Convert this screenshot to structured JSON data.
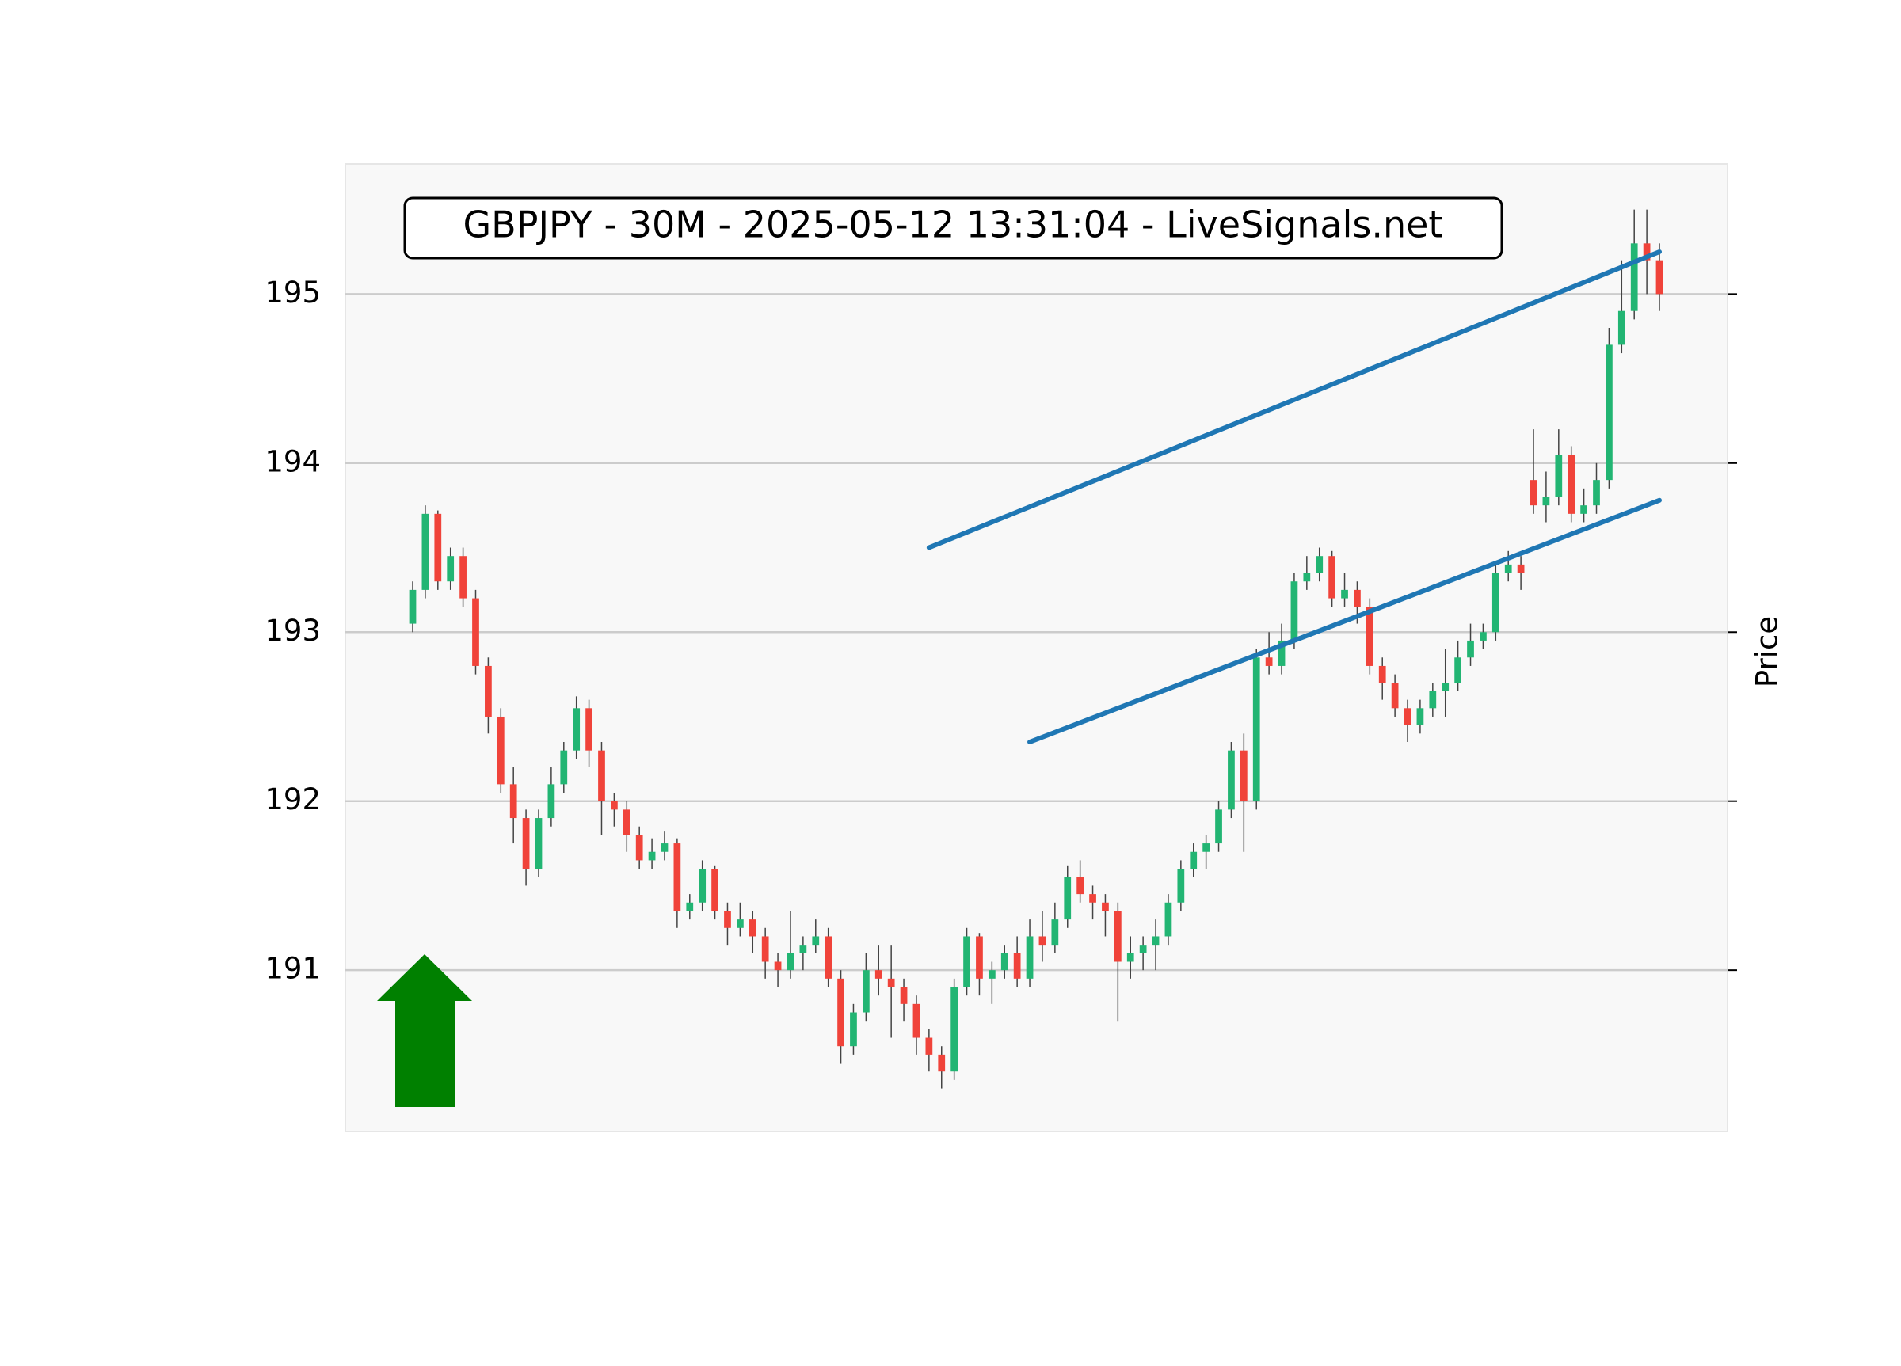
{
  "chart_data": {
    "type": "candlestick",
    "title": "GBPJPY - 30M - 2025-05-12 13:31:04 - LiveSignals.net",
    "y_label": "Price",
    "ylim": [
      190.045,
      195.77
    ],
    "yticks": [
      191,
      192,
      193,
      194,
      195
    ],
    "grid": true,
    "up_color": "#22b573",
    "down_color": "#f0433a",
    "wick_color": "#444444",
    "open": [
      193.05,
      193.25,
      193.7,
      193.3,
      193.45,
      193.2,
      192.8,
      192.5,
      192.1,
      191.9,
      191.6,
      191.9,
      192.1,
      192.3,
      192.55,
      192.3,
      192.0,
      191.95,
      191.8,
      191.65,
      191.7,
      191.75,
      191.35,
      191.4,
      191.6,
      191.35,
      191.25,
      191.3,
      191.2,
      191.05,
      191.0,
      191.1,
      191.15,
      191.2,
      190.95,
      190.55,
      190.75,
      191.0,
      190.95,
      190.9,
      190.8,
      190.6,
      190.5,
      190.4,
      190.9,
      191.2,
      190.95,
      191.0,
      191.1,
      190.95,
      191.2,
      191.15,
      191.3,
      191.55,
      191.45,
      191.4,
      191.35,
      191.05,
      191.1,
      191.15,
      191.2,
      191.4,
      191.6,
      191.7,
      191.75,
      191.95,
      192.3,
      192.0,
      192.85,
      192.8,
      192.95,
      193.3,
      193.35,
      193.45,
      193.2,
      193.25,
      193.15,
      192.8,
      192.7,
      192.55,
      192.45,
      192.55,
      192.65,
      192.7,
      192.85,
      192.95,
      193.0,
      193.35,
      193.4,
      193.9,
      193.75,
      193.8,
      194.05,
      193.7,
      193.75,
      193.9,
      194.7,
      194.9,
      195.3,
      195.2
    ],
    "high": [
      193.3,
      193.75,
      193.72,
      193.5,
      193.5,
      193.25,
      192.85,
      192.55,
      192.2,
      191.95,
      191.95,
      192.2,
      192.35,
      192.62,
      192.6,
      192.35,
      192.05,
      192.0,
      191.85,
      191.78,
      191.82,
      191.78,
      191.45,
      191.65,
      191.62,
      191.4,
      191.4,
      191.35,
      191.25,
      191.1,
      191.35,
      191.2,
      191.3,
      191.25,
      191.0,
      190.8,
      191.1,
      191.15,
      191.15,
      190.95,
      190.85,
      190.65,
      190.55,
      190.95,
      191.25,
      191.22,
      191.05,
      191.15,
      191.2,
      191.3,
      191.35,
      191.4,
      191.62,
      191.65,
      191.5,
      191.45,
      191.4,
      191.2,
      191.2,
      191.3,
      191.45,
      191.65,
      191.75,
      191.8,
      192.0,
      192.35,
      192.4,
      192.9,
      193.0,
      193.05,
      193.35,
      193.45,
      193.5,
      193.48,
      193.35,
      193.3,
      193.2,
      192.85,
      192.75,
      192.6,
      192.6,
      192.7,
      192.9,
      192.95,
      193.05,
      193.05,
      193.4,
      193.48,
      193.45,
      194.2,
      193.95,
      194.2,
      194.1,
      193.85,
      194.0,
      194.8,
      195.2,
      195.5,
      195.5,
      195.3
    ],
    "low": [
      193.0,
      193.2,
      193.25,
      193.25,
      193.15,
      192.75,
      192.4,
      192.05,
      191.75,
      191.5,
      191.55,
      191.85,
      192.05,
      192.25,
      192.2,
      191.8,
      191.85,
      191.7,
      191.6,
      191.6,
      191.65,
      191.25,
      191.3,
      191.35,
      191.3,
      191.15,
      191.2,
      191.1,
      190.95,
      190.9,
      190.95,
      191.0,
      191.1,
      190.9,
      190.45,
      190.5,
      190.7,
      190.85,
      190.6,
      190.7,
      190.5,
      190.4,
      190.3,
      190.35,
      190.85,
      190.85,
      190.8,
      190.95,
      190.9,
      190.9,
      191.05,
      191.1,
      191.25,
      191.4,
      191.3,
      191.2,
      190.7,
      190.95,
      191.0,
      191.0,
      191.15,
      191.35,
      191.55,
      191.6,
      191.7,
      191.9,
      191.7,
      191.95,
      192.75,
      192.75,
      192.9,
      193.25,
      193.3,
      193.15,
      193.15,
      193.05,
      192.75,
      192.6,
      192.5,
      192.35,
      192.4,
      192.5,
      192.5,
      192.65,
      192.8,
      192.9,
      192.95,
      193.3,
      193.25,
      193.7,
      193.65,
      193.75,
      193.65,
      193.65,
      193.7,
      193.85,
      194.65,
      194.85,
      195.0,
      194.9
    ],
    "close": [
      193.25,
      193.7,
      193.3,
      193.45,
      193.2,
      192.8,
      192.5,
      192.1,
      191.9,
      191.6,
      191.9,
      192.1,
      192.3,
      192.55,
      192.3,
      192.0,
      191.95,
      191.8,
      191.65,
      191.7,
      191.75,
      191.35,
      191.4,
      191.6,
      191.35,
      191.25,
      191.3,
      191.2,
      191.05,
      191.0,
      191.1,
      191.15,
      191.2,
      190.95,
      190.55,
      190.75,
      191.0,
      190.95,
      190.9,
      190.8,
      190.6,
      190.5,
      190.4,
      190.9,
      191.2,
      190.95,
      191.0,
      191.1,
      190.95,
      191.2,
      191.15,
      191.3,
      191.55,
      191.45,
      191.4,
      191.35,
      191.05,
      191.1,
      191.15,
      191.2,
      191.4,
      191.6,
      191.7,
      191.75,
      191.95,
      192.3,
      192.0,
      192.85,
      192.8,
      192.95,
      193.3,
      193.35,
      193.45,
      193.2,
      193.25,
      193.15,
      192.8,
      192.7,
      192.55,
      192.45,
      192.55,
      192.65,
      192.7,
      192.85,
      192.95,
      193.0,
      193.35,
      193.4,
      193.35,
      193.75,
      193.8,
      194.05,
      193.7,
      193.75,
      193.9,
      194.7,
      194.9,
      195.3,
      195.2,
      195.0
    ],
    "lines": [
      {
        "color": "#1f77b4",
        "x": [
          41,
          99
        ],
        "y": [
          193.5,
          195.25
        ]
      },
      {
        "color": "#1f77b4",
        "x": [
          49,
          99
        ],
        "y": [
          192.35,
          193.78
        ]
      }
    ]
  }
}
